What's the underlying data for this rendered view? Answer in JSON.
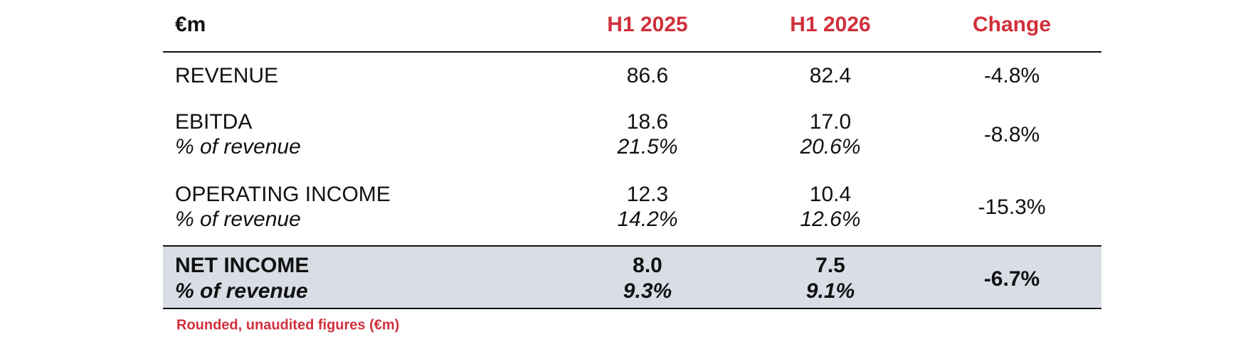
{
  "table": {
    "header": [
      "€m",
      "H1 2025",
      "H1 2026",
      "Change"
    ],
    "rows": [
      {
        "label": "REVENUE",
        "values": [
          "86.6",
          "82.4"
        ],
        "change": "-4.8%"
      },
      {
        "label": "EBITDA",
        "sublabel": "% of revenue",
        "values": [
          "18.6",
          "17.0"
        ],
        "margins": [
          "21.5%",
          "20.6%"
        ],
        "change": "-8.8%"
      },
      {
        "label": "OPERATING INCOME",
        "sublabel": "% of revenue",
        "values": [
          "12.3",
          "10.4"
        ],
        "margins": [
          "14.2%",
          "12.6%"
        ],
        "change": "-15.3%"
      },
      {
        "label": "NET INCOME",
        "sublabel": "% of revenue",
        "values": [
          "8.0",
          "7.5"
        ],
        "margins": [
          "9.3%",
          "9.1%"
        ],
        "change": "-6.7%"
      }
    ],
    "footnote": "Rounded, unaudited figures (€m)"
  }
}
